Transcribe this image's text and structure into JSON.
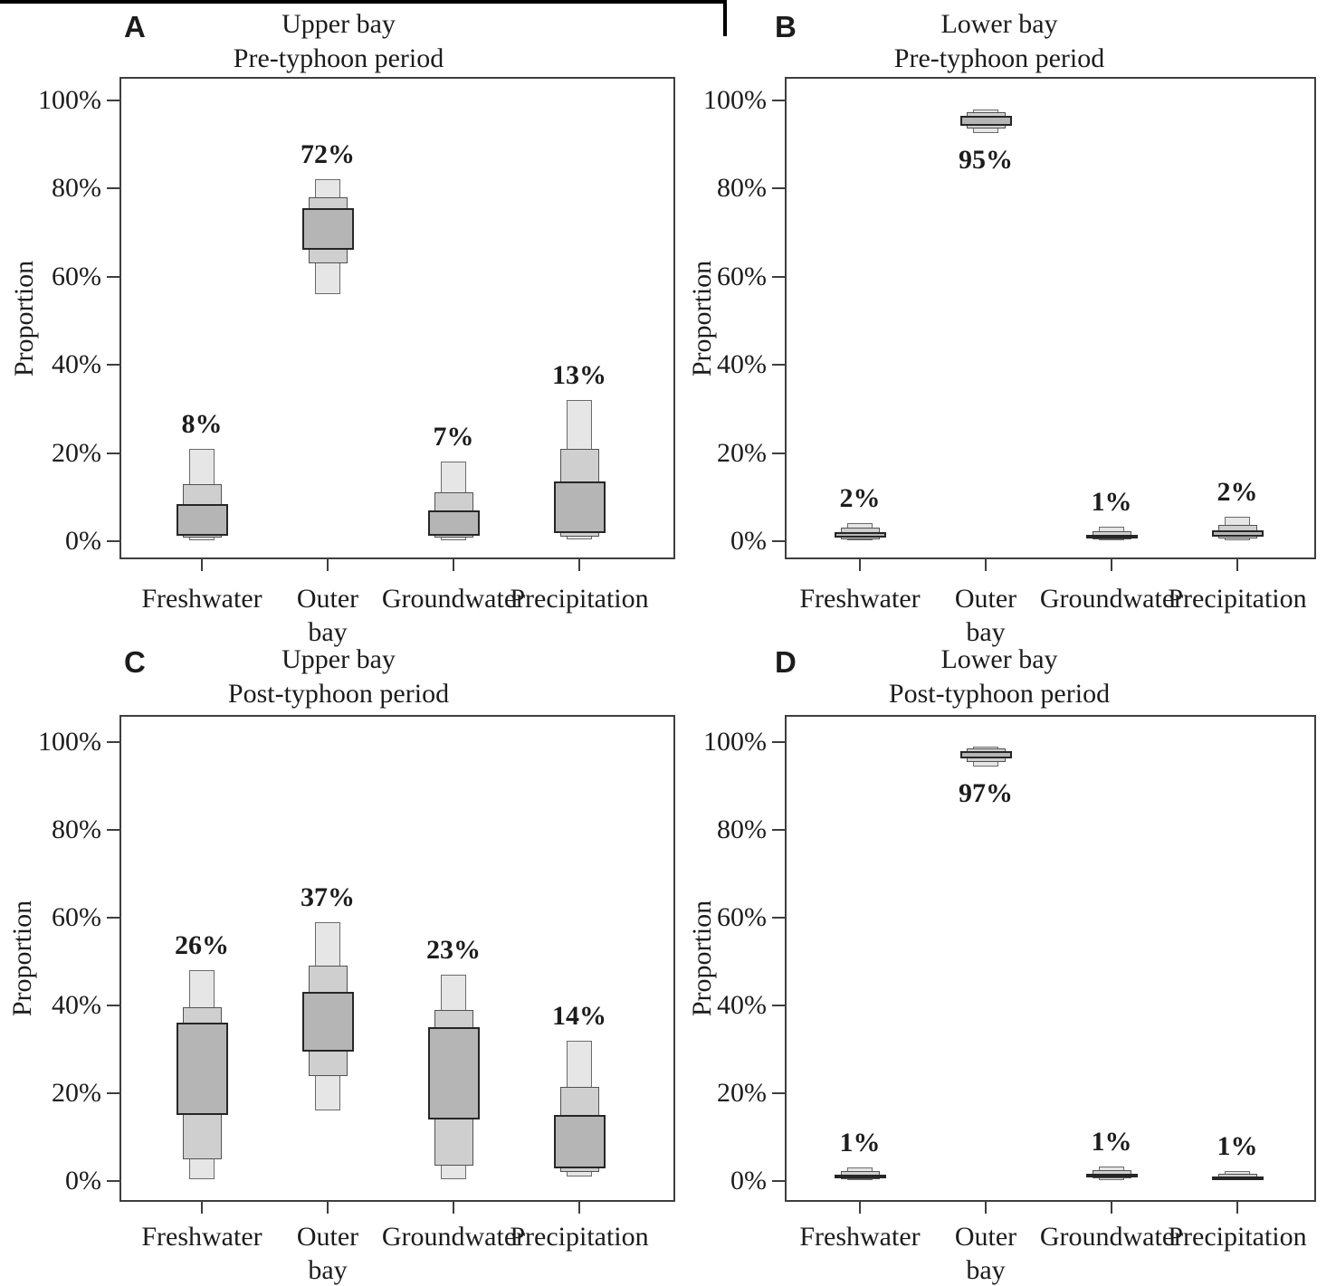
{
  "figure": {
    "background": "#ffffff",
    "text_color": "#1c1c1c",
    "frame_color": "#3e3e3e",
    "top_border_color": "#000000",
    "interval_styles": {
      "ci95": {
        "fill": "#e6e6e6",
        "border": "#6b6b6b"
      },
      "ci75": {
        "fill": "#cfcfcf",
        "border": "#525252"
      },
      "ci50": {
        "fill": "#b5b5b5",
        "border": "#262626"
      }
    }
  },
  "chart_data": [
    {
      "panel_letter": "A",
      "type": "credible-interval-boxes",
      "title_lines": [
        "Upper bay",
        "Pre-typhoon period"
      ],
      "ylabel": "Proportion",
      "ylim": [
        0,
        100
      ],
      "ytick_values": [
        0,
        20,
        40,
        60,
        80,
        100
      ],
      "ytick_labels": [
        "0%",
        "20%",
        "40%",
        "60%",
        "80%",
        "100%"
      ],
      "categories": [
        "Freshwater",
        "Outer bay",
        "Groundwater",
        "Precipitation"
      ],
      "sources": [
        {
          "name": "Freshwater",
          "axis_label_lines": [
            "Freshwater"
          ],
          "median_label": "8%",
          "label_side": "above",
          "ci95": [
            0.3,
            21
          ],
          "ci75": [
            0.8,
            13
          ],
          "ci50": [
            1.3,
            8.5
          ]
        },
        {
          "name": "Outer bay",
          "axis_label_lines": [
            "Outer",
            "bay"
          ],
          "median_label": "72%",
          "label_side": "above",
          "ci95": [
            56,
            82
          ],
          "ci75": [
            63,
            78
          ],
          "ci50": [
            66,
            75.5
          ]
        },
        {
          "name": "Groundwater",
          "axis_label_lines": [
            "Groundwater"
          ],
          "median_label": "7%",
          "label_side": "above",
          "ci95": [
            0.3,
            18
          ],
          "ci75": [
            0.8,
            11
          ],
          "ci50": [
            1.3,
            7
          ]
        },
        {
          "name": "Precipitation",
          "axis_label_lines": [
            "Precipitation"
          ],
          "median_label": "13%",
          "label_side": "above",
          "ci95": [
            0.4,
            32
          ],
          "ci75": [
            1,
            21
          ],
          "ci50": [
            1.8,
            13.5
          ]
        }
      ]
    },
    {
      "panel_letter": "B",
      "type": "credible-interval-boxes",
      "title_lines": [
        "Lower bay",
        "Pre-typhoon period"
      ],
      "ylabel": "Proportion",
      "ylim": [
        0,
        100
      ],
      "ytick_values": [
        0,
        20,
        40,
        60,
        80,
        100
      ],
      "ytick_labels": [
        "0%",
        "20%",
        "40%",
        "60%",
        "80%",
        "100%"
      ],
      "categories": [
        "Freshwater",
        "Outer bay",
        "Groundwater",
        "Precipitation"
      ],
      "sources": [
        {
          "name": "Freshwater",
          "axis_label_lines": [
            "Freshwater"
          ],
          "median_label": "2%",
          "label_side": "above",
          "ci95": [
            0.2,
            4.2
          ],
          "ci75": [
            0.5,
            3
          ],
          "ci50": [
            0.8,
            2
          ]
        },
        {
          "name": "Outer bay",
          "axis_label_lines": [
            "Outer",
            "bay"
          ],
          "median_label": "95%",
          "label_side": "below",
          "ci95": [
            92.5,
            97.8
          ],
          "ci75": [
            93.5,
            97.2
          ],
          "ci50": [
            94.2,
            96.5
          ]
        },
        {
          "name": "Groundwater",
          "axis_label_lines": [
            "Groundwater"
          ],
          "median_label": "1%",
          "label_side": "above",
          "ci95": [
            0.2,
            3.2
          ],
          "ci75": [
            0.5,
            2.2
          ],
          "ci50": [
            0.8,
            1.5
          ]
        },
        {
          "name": "Precipitation",
          "axis_label_lines": [
            "Precipitation"
          ],
          "median_label": "2%",
          "label_side": "above",
          "ci95": [
            0.2,
            5.5
          ],
          "ci75": [
            0.6,
            3.6
          ],
          "ci50": [
            1,
            2.4
          ]
        }
      ]
    },
    {
      "panel_letter": "C",
      "type": "credible-interval-boxes",
      "title_lines": [
        "Upper bay",
        "Post-typhoon period"
      ],
      "ylabel": "Proportion",
      "ylim": [
        0,
        100
      ],
      "ytick_values": [
        0,
        20,
        40,
        60,
        80,
        100
      ],
      "ytick_labels": [
        "0%",
        "20%",
        "40%",
        "60%",
        "80%",
        "100%"
      ],
      "categories": [
        "Freshwater",
        "Outer bay",
        "Groundwater",
        "Precipitation"
      ],
      "sources": [
        {
          "name": "Freshwater",
          "axis_label_lines": [
            "Freshwater"
          ],
          "median_label": "26%",
          "label_side": "above",
          "ci95": [
            0.5,
            48
          ],
          "ci75": [
            5,
            39.5
          ],
          "ci50": [
            15,
            36
          ]
        },
        {
          "name": "Outer bay",
          "axis_label_lines": [
            "Outer",
            "bay"
          ],
          "median_label": "37%",
          "label_side": "above",
          "ci95": [
            16,
            59
          ],
          "ci75": [
            24,
            49
          ],
          "ci50": [
            29.5,
            43
          ]
        },
        {
          "name": "Groundwater",
          "axis_label_lines": [
            "Groundwater"
          ],
          "median_label": "23%",
          "label_side": "above",
          "ci95": [
            0.5,
            47
          ],
          "ci75": [
            3.5,
            39
          ],
          "ci50": [
            14,
            35
          ]
        },
        {
          "name": "Precipitation",
          "axis_label_lines": [
            "Precipitation"
          ],
          "median_label": "14%",
          "label_side": "above",
          "ci95": [
            1,
            32
          ],
          "ci75": [
            2,
            21.5
          ],
          "ci50": [
            2.8,
            15
          ]
        }
      ]
    },
    {
      "panel_letter": "D",
      "type": "credible-interval-boxes",
      "title_lines": [
        "Lower bay",
        "Post-typhoon period"
      ],
      "ylabel": "Proportion",
      "ylim": [
        0,
        100
      ],
      "ytick_values": [
        0,
        20,
        40,
        60,
        80,
        100
      ],
      "ytick_labels": [
        "0%",
        "20%",
        "40%",
        "60%",
        "80%",
        "100%"
      ],
      "categories": [
        "Freshwater",
        "Outer bay",
        "Groundwater",
        "Precipitation"
      ],
      "sources": [
        {
          "name": "Freshwater",
          "axis_label_lines": [
            "Freshwater"
          ],
          "median_label": "1%",
          "label_side": "above",
          "ci95": [
            0.2,
            3
          ],
          "ci75": [
            0.5,
            2.2
          ],
          "ci50": [
            0.8,
            1.5
          ]
        },
        {
          "name": "Outer bay",
          "axis_label_lines": [
            "Outer",
            "bay"
          ],
          "median_label": "97%",
          "label_side": "below",
          "ci95": [
            94.5,
            99
          ],
          "ci75": [
            95.5,
            98.5
          ],
          "ci50": [
            96.2,
            98
          ]
        },
        {
          "name": "Groundwater",
          "axis_label_lines": [
            "Groundwater"
          ],
          "median_label": "1%",
          "label_side": "above",
          "ci95": [
            0.2,
            3.2
          ],
          "ci75": [
            0.6,
            2.4
          ],
          "ci50": [
            0.9,
            1.6
          ]
        },
        {
          "name": "Precipitation",
          "axis_label_lines": [
            "Precipitation"
          ],
          "median_label": "1%",
          "label_side": "above",
          "ci95": [
            0.2,
            2.2
          ],
          "ci75": [
            0.4,
            1.6
          ],
          "ci50": [
            0.6,
            1.1
          ]
        }
      ]
    }
  ]
}
